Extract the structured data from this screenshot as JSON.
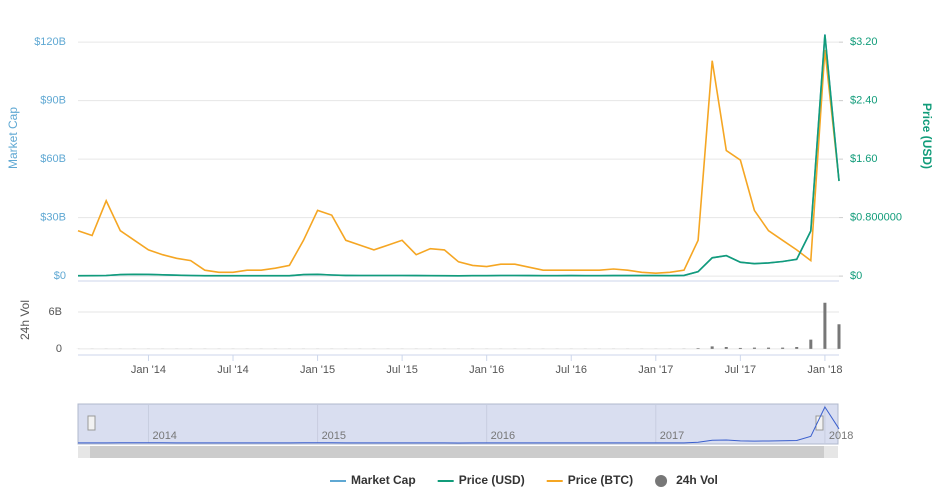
{
  "chart_data": {
    "type": "line",
    "x": [
      "2013-08",
      "2013-09",
      "2013-10",
      "2013-11",
      "2013-12",
      "2014-01",
      "2014-02",
      "2014-03",
      "2014-04",
      "2014-05",
      "2014-06",
      "2014-07",
      "2014-08",
      "2014-09",
      "2014-10",
      "2014-11",
      "2014-12",
      "2015-01",
      "2015-02",
      "2015-03",
      "2015-04",
      "2015-05",
      "2015-06",
      "2015-07",
      "2015-08",
      "2015-09",
      "2015-10",
      "2015-11",
      "2015-12",
      "2016-01",
      "2016-02",
      "2016-03",
      "2016-04",
      "2016-05",
      "2016-06",
      "2016-07",
      "2016-08",
      "2016-09",
      "2016-10",
      "2016-11",
      "2016-12",
      "2017-01",
      "2017-02",
      "2017-03",
      "2017-04",
      "2017-05",
      "2017-06",
      "2017-07",
      "2017-08",
      "2017-09",
      "2017-10",
      "2017-11",
      "2017-12",
      "2018-01",
      "2018-02"
    ],
    "xlim": [
      "2013-08",
      "2018-02"
    ],
    "xticks": [
      {
        "value": "2014-01",
        "label": "Jan '14"
      },
      {
        "value": "2014-07",
        "label": "Jul '14"
      },
      {
        "value": "2015-01",
        "label": "Jan '15"
      },
      {
        "value": "2015-07",
        "label": "Jul '15"
      },
      {
        "value": "2016-01",
        "label": "Jan '16"
      },
      {
        "value": "2016-07",
        "label": "Jul '16"
      },
      {
        "value": "2017-01",
        "label": "Jan '17"
      },
      {
        "value": "2017-07",
        "label": "Jul '17"
      },
      {
        "value": "2018-01",
        "label": "Jan '18"
      }
    ],
    "ylabel": "Market Cap",
    "ylim": [
      -2.5,
      137.5
    ],
    "yticks": [
      {
        "value": 0,
        "label": "$0"
      },
      {
        "value": 30,
        "label": "$30B"
      },
      {
        "value": 60,
        "label": "$60B"
      },
      {
        "value": 90,
        "label": "$90B"
      },
      {
        "value": 120,
        "label": "$120B"
      }
    ],
    "y2label": "Price (USD)",
    "y2lim": [
      -0.067,
      3.667
    ],
    "y2ticks": [
      {
        "value": 0,
        "label": "$0"
      },
      {
        "value": 0.8,
        "label": "$0.800000"
      },
      {
        "value": 1.6,
        "label": "$1.60"
      },
      {
        "value": 2.4,
        "label": "$2.40"
      },
      {
        "value": 3.2,
        "label": "$3.20"
      }
    ],
    "y3lim": [
      -4e-06,
      0.000224
    ],
    "volume_ylabel": "24h Vol",
    "volume_ylim": [
      -1,
      9.9
    ],
    "volume_yticks": [
      0,
      {
        "value": 6,
        "label": "6B"
      }
    ],
    "grid": true,
    "legend": "bottom",
    "series": [
      {
        "name": "Market Cap",
        "color": "#5fa8d3",
        "values": [
          0.19,
          0.23,
          0.3,
          0.75,
          0.94,
          0.86,
          0.68,
          0.49,
          0.3,
          0.19,
          0.19,
          0.19,
          0.19,
          0.19,
          0.19,
          0.19,
          0.75,
          0.9,
          0.56,
          0.38,
          0.3,
          0.3,
          0.3,
          0.3,
          0.26,
          0.23,
          0.19,
          0.15,
          0.23,
          0.23,
          0.3,
          0.3,
          0.26,
          0.23,
          0.23,
          0.26,
          0.23,
          0.23,
          0.26,
          0.26,
          0.26,
          0.26,
          0.23,
          0.38,
          2.3,
          9.4,
          10.5,
          7.1,
          6.4,
          6.8,
          7.5,
          8.6,
          23,
          124,
          49
        ]
      },
      {
        "name": "Price (USD)",
        "color": "#119c7a",
        "axis": "y2",
        "values": [
          0.005,
          0.006,
          0.008,
          0.02,
          0.025,
          0.023,
          0.018,
          0.013,
          0.008,
          0.005,
          0.005,
          0.005,
          0.005,
          0.005,
          0.005,
          0.005,
          0.02,
          0.024,
          0.015,
          0.01,
          0.008,
          0.008,
          0.008,
          0.008,
          0.007,
          0.006,
          0.005,
          0.004,
          0.006,
          0.006,
          0.008,
          0.008,
          0.007,
          0.006,
          0.006,
          0.007,
          0.006,
          0.006,
          0.007,
          0.007,
          0.007,
          0.007,
          0.006,
          0.01,
          0.06,
          0.25,
          0.28,
          0.19,
          0.17,
          0.18,
          0.2,
          0.23,
          0.62,
          3.3,
          1.3
        ]
      },
      {
        "name": "Price (BTC)",
        "color": "#f5a623",
        "axis": "y3",
        "values": [
          3.8e-05,
          3.4e-05,
          6.3e-05,
          3.8e-05,
          3e-05,
          2.2e-05,
          1.8e-05,
          1.5e-05,
          1.3e-05,
          5e-06,
          3.3e-06,
          3.3e-06,
          5e-06,
          5e-06,
          6.7e-06,
          9e-06,
          3e-05,
          5.5e-05,
          5.1e-05,
          3e-05,
          2.6e-05,
          2.2e-05,
          2.6e-05,
          3e-05,
          1.8e-05,
          2.3e-05,
          2.2e-05,
          1.2e-05,
          9e-06,
          8e-06,
          1e-05,
          1e-05,
          7.5e-06,
          5e-06,
          5e-06,
          5e-06,
          5e-06,
          5e-06,
          6e-06,
          5e-06,
          3.3e-06,
          2.5e-06,
          3.3e-06,
          5e-06,
          3e-05,
          0.00018,
          0.000105,
          9.7e-05,
          5.5e-05,
          3.8e-05,
          3e-05,
          2.2e-05,
          1.3e-05,
          0.000189,
          8e-05
        ]
      },
      {
        "name": "24h Vol",
        "color": "#777777",
        "axis": "volume",
        "values": [
          0.01,
          0.01,
          0.01,
          0.01,
          0.01,
          0.01,
          0.01,
          0.01,
          0.01,
          0.01,
          0.01,
          0.01,
          0.01,
          0.01,
          0.01,
          0.01,
          0.01,
          0.01,
          0.01,
          0.01,
          0.01,
          0.01,
          0.01,
          0.01,
          0.01,
          0.01,
          0.01,
          0.01,
          0.01,
          0.01,
          0.01,
          0.01,
          0.01,
          0.01,
          0.01,
          0.01,
          0.01,
          0.01,
          0.01,
          0.01,
          0.01,
          0.01,
          0.01,
          0.02,
          0.1,
          0.4,
          0.3,
          0.15,
          0.2,
          0.2,
          0.2,
          0.3,
          1.5,
          7.5,
          4
        ]
      }
    ],
    "navigator": {
      "xticks": [
        {
          "value": "2014-01",
          "label": "2014"
        },
        {
          "value": "2015-01",
          "label": "2015"
        },
        {
          "value": "2016-01",
          "label": "2016"
        },
        {
          "value": "2017-01",
          "label": "2017"
        },
        {
          "value": "2018-01",
          "label": "2018"
        }
      ]
    }
  }
}
